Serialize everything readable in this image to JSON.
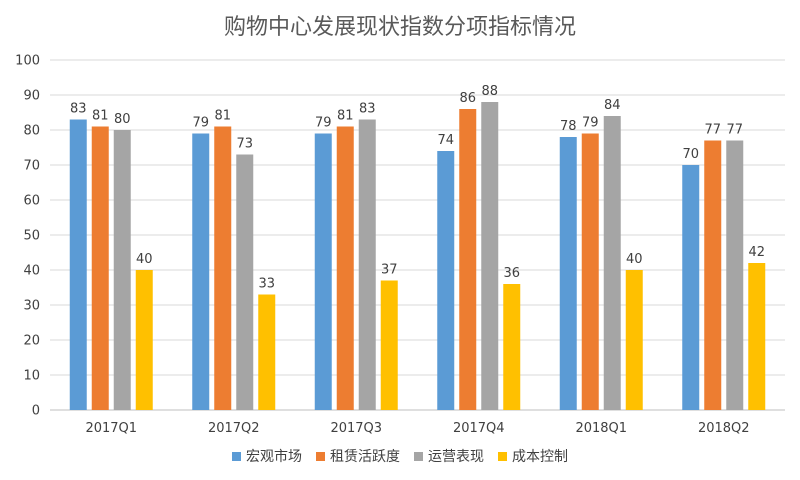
{
  "chart_data": {
    "type": "bar",
    "title": "购物中心发展现状指数分项指标情况",
    "categories": [
      "2017Q1",
      "2017Q2",
      "2017Q3",
      "2017Q4",
      "2018Q1",
      "2018Q2"
    ],
    "series": [
      {
        "name": "宏观市场",
        "color": "#5b9bd5",
        "values": [
          83,
          79,
          79,
          74,
          78,
          70
        ]
      },
      {
        "name": "租赁活跃度",
        "color": "#ed7d31",
        "values": [
          81,
          81,
          81,
          86,
          79,
          77
        ]
      },
      {
        "name": "运营表现",
        "color": "#a5a5a5",
        "values": [
          80,
          73,
          83,
          88,
          84,
          77
        ]
      },
      {
        "name": "成本控制",
        "color": "#ffc000",
        "values": [
          40,
          33,
          37,
          36,
          40,
          42
        ]
      }
    ],
    "ylim": [
      0,
      100
    ],
    "yticks": [
      0,
      10,
      20,
      30,
      40,
      50,
      60,
      70,
      80,
      90,
      100
    ],
    "grid": true,
    "legend_position": "bottom",
    "data_labels": true
  }
}
